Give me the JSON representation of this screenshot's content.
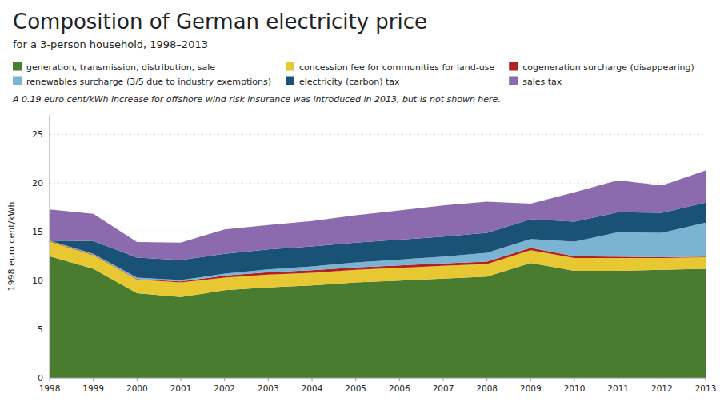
{
  "chart_data": {
    "type": "area",
    "stacked": true,
    "title": "Composition of German electricity price",
    "subtitle": "for a 3-person household, 1998–2013",
    "note": "A 0.19 euro cent/kWh increase for offshore wind risk insurance was introduced in 2013, but is not shown here.",
    "y_label": "1998 euro cent/kWh",
    "x": [
      1998,
      1999,
      2000,
      2001,
      2002,
      2003,
      2004,
      2005,
      2006,
      2007,
      2008,
      2009,
      2010,
      2011,
      2012,
      2013
    ],
    "xlim": [
      1998,
      2013
    ],
    "xticks": [
      1998,
      1999,
      2000,
      2001,
      2002,
      2003,
      2004,
      2005,
      2006,
      2007,
      2008,
      2009,
      2010,
      2011,
      2012,
      2013
    ],
    "series": [
      {
        "name": "generation, transmission, distribution, sale",
        "color": "#4a7c2f",
        "values": [
          12.5,
          11.2,
          8.7,
          8.3,
          9.0,
          9.3,
          9.5,
          9.8,
          10.0,
          10.2,
          10.4,
          11.8,
          11.0,
          11.0,
          11.1,
          11.2
        ]
      },
      {
        "name": "concession fee for communities for land-use",
        "color": "#e8c832",
        "values": [
          1.5,
          1.4,
          1.4,
          1.5,
          1.3,
          1.3,
          1.3,
          1.3,
          1.3,
          1.3,
          1.3,
          1.3,
          1.3,
          1.3,
          1.2,
          1.2
        ]
      },
      {
        "name": "cogeneration surcharge (disappearing)",
        "color": "#b22222",
        "values": [
          0.05,
          0.05,
          0.05,
          0.1,
          0.2,
          0.25,
          0.25,
          0.25,
          0.25,
          0.25,
          0.25,
          0.25,
          0.2,
          0.15,
          0.1,
          0.05
        ]
      },
      {
        "name": "renewables surcharge (3/5 due to industry exemptions)",
        "color": "#7bb3d3",
        "values": [
          0.05,
          0.1,
          0.15,
          0.15,
          0.2,
          0.3,
          0.4,
          0.5,
          0.6,
          0.7,
          0.9,
          0.9,
          1.5,
          2.5,
          2.5,
          3.5
        ]
      },
      {
        "name": "electricity (carbon) tax",
        "color": "#1a5276",
        "values": [
          0.0,
          1.3,
          2.05,
          2.05,
          2.05,
          2.05,
          2.05,
          2.05,
          2.05,
          2.05,
          2.05,
          2.05,
          2.05,
          2.05,
          2.05,
          2.05
        ]
      },
      {
        "name": "sales tax",
        "color": "#8b6bad",
        "values": [
          3.2,
          2.8,
          1.6,
          1.8,
          2.5,
          2.5,
          2.6,
          2.8,
          3.0,
          3.2,
          3.2,
          1.6,
          3.0,
          3.3,
          2.8,
          3.3
        ]
      }
    ],
    "ylim": [
      0,
      27
    ],
    "yticks": [
      0,
      5,
      10,
      15,
      20,
      25
    ],
    "grid": true,
    "legend": "top"
  }
}
